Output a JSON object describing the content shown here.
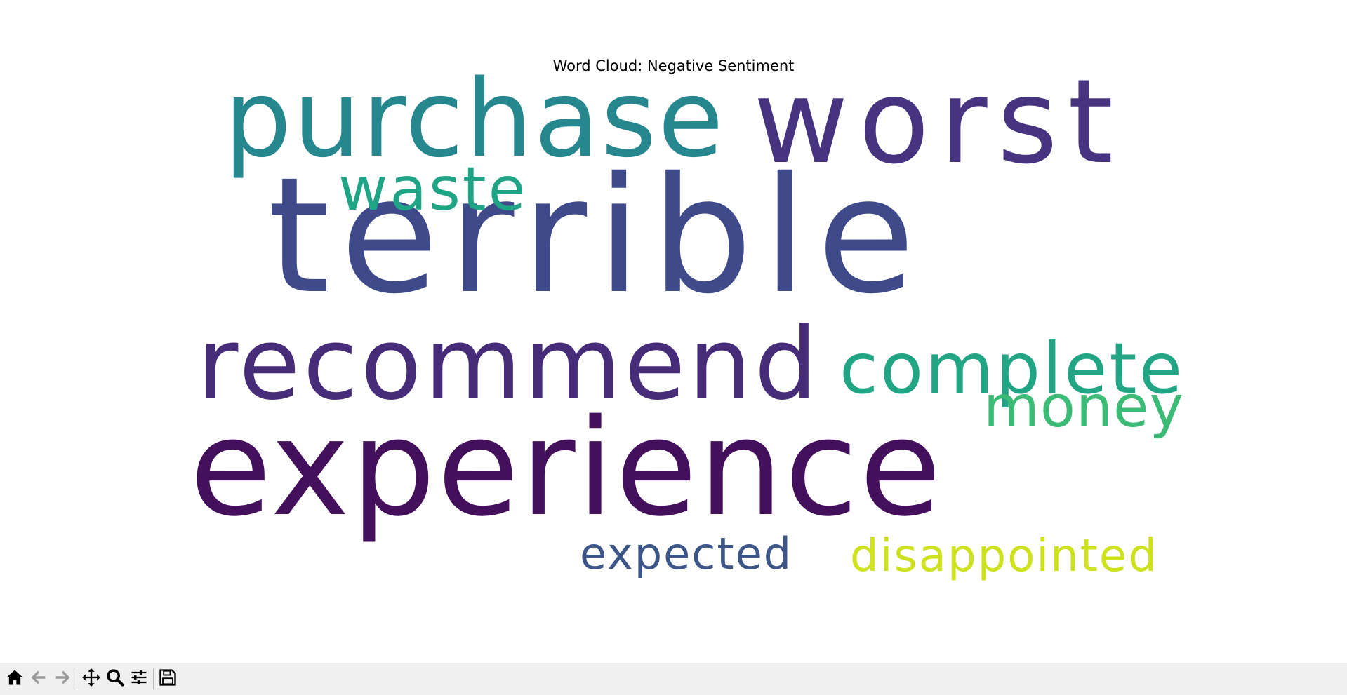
{
  "figure": {
    "title": "Word Cloud: Negative Sentiment"
  },
  "word_cloud": {
    "words": [
      {
        "text": "terrible",
        "color": "#3e4a89"
      },
      {
        "text": "experience",
        "color": "#440f5b"
      },
      {
        "text": "recommend",
        "color": "#472c7a"
      },
      {
        "text": "worst",
        "color": "#463480"
      },
      {
        "text": "purchase",
        "color": "#26878e"
      },
      {
        "text": "complete",
        "color": "#21a585"
      },
      {
        "text": "waste",
        "color": "#20a486"
      },
      {
        "text": "money",
        "color": "#3bbb75"
      },
      {
        "text": "expected",
        "color": "#3d5688"
      },
      {
        "text": "disappointed",
        "color": "#cde11d"
      }
    ]
  },
  "toolbar": {
    "buttons": [
      {
        "name": "home-icon",
        "enabled": true
      },
      {
        "name": "back-icon",
        "enabled": false
      },
      {
        "name": "forward-icon",
        "enabled": false
      },
      {
        "name": "pan-icon",
        "enabled": true
      },
      {
        "name": "zoom-icon",
        "enabled": true
      },
      {
        "name": "configure-subplots-icon",
        "enabled": true
      },
      {
        "name": "save-icon",
        "enabled": true
      }
    ]
  }
}
